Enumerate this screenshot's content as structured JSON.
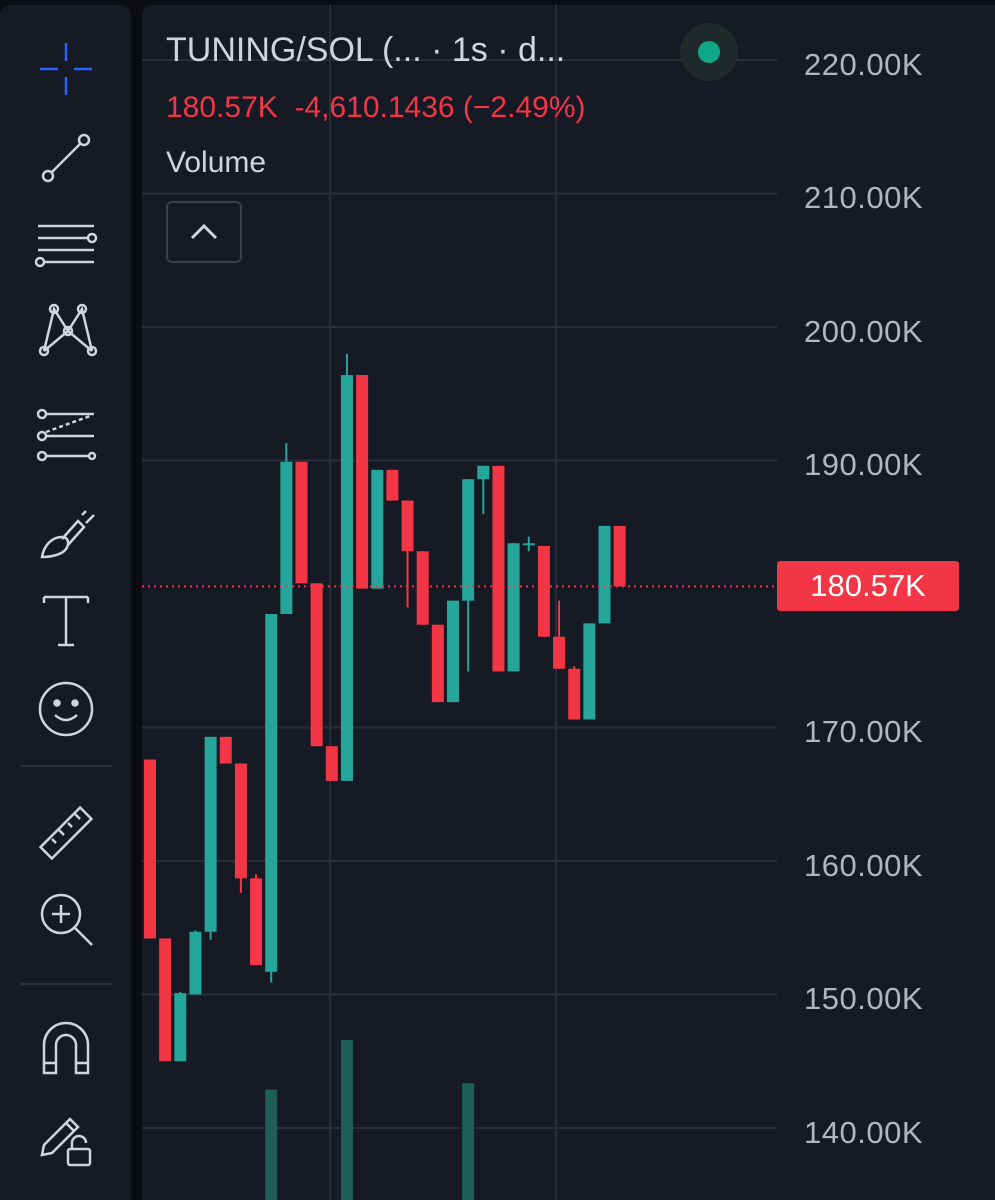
{
  "legend": {
    "title": "TUNING/SOL (...   · 1s · d...",
    "price": "180.57K",
    "change": "-4,610.1436 (−2.49%)",
    "volume_label": "Volume"
  },
  "price_axis": {
    "labels": [
      "220.00K",
      "210.00K",
      "200.00K",
      "190.00K",
      "180.57K",
      "170.00K",
      "160.00K",
      "150.00K",
      "140.00K"
    ],
    "ticks": [
      220,
      210,
      200,
      190,
      170,
      160,
      150,
      140
    ],
    "last_price_label": "180.57K",
    "last_price": 180.57
  },
  "toolbar": {
    "tools": [
      "crosshair-icon",
      "trend-line-icon",
      "horizontal-lines-icon",
      "pattern-icon",
      "forecast-icon",
      "brush-icon",
      "text-icon",
      "emoji-icon",
      "ruler-icon",
      "zoom-in-icon",
      "magnet-icon",
      "lock-drawing-icon"
    ]
  },
  "colors": {
    "up": "#26a69a",
    "down": "#f23645",
    "background": "#161a24",
    "grid": "#2a2e39",
    "text": "#d1d4dc"
  },
  "chart_data": {
    "type": "candlestick",
    "symbol": "TUNING/SOL",
    "interval": "1s",
    "ylim": [
      135.5,
      223.3
    ],
    "candles": [
      {
        "o": 167.6,
        "h": 167.6,
        "c": 154.2,
        "l": 154.2
      },
      {
        "o": 154.2,
        "h": 154.2,
        "c": 145.0,
        "l": 145.0
      },
      {
        "o": 145.0,
        "h": 150.2,
        "c": 150.1,
        "l": 145.0
      },
      {
        "o": 150.0,
        "h": 154.8,
        "c": 154.7,
        "l": 150.0
      },
      {
        "o": 154.7,
        "h": 169.3,
        "c": 169.3,
        "l": 154.1
      },
      {
        "o": 169.3,
        "h": 169.3,
        "c": 167.3,
        "l": 167.3
      },
      {
        "o": 167.3,
        "h": 167.3,
        "c": 158.7,
        "l": 157.6
      },
      {
        "o": 158.7,
        "h": 159.0,
        "c": 152.2,
        "l": 152.2
      },
      {
        "o": 151.7,
        "h": 178.5,
        "c": 178.5,
        "l": 150.9
      },
      {
        "o": 178.5,
        "h": 191.3,
        "c": 189.9,
        "l": 178.5
      },
      {
        "o": 189.9,
        "h": 189.9,
        "c": 180.8,
        "l": 180.8
      },
      {
        "o": 180.8,
        "h": 180.8,
        "c": 168.6,
        "l": 168.6
      },
      {
        "o": 168.6,
        "h": 168.6,
        "c": 166.0,
        "l": 166.0
      },
      {
        "o": 166.0,
        "h": 198.0,
        "c": 196.4,
        "l": 166.0
      },
      {
        "o": 196.4,
        "h": 196.4,
        "c": 180.4,
        "l": 180.4
      },
      {
        "o": 180.4,
        "h": 189.3,
        "c": 189.3,
        "l": 180.4
      },
      {
        "o": 189.3,
        "h": 189.3,
        "c": 187.0,
        "l": 187.0
      },
      {
        "o": 187.0,
        "h": 187.0,
        "c": 183.2,
        "l": 179.0
      },
      {
        "o": 183.2,
        "h": 183.2,
        "c": 177.7,
        "l": 177.7
      },
      {
        "o": 177.7,
        "h": 177.7,
        "c": 171.9,
        "l": 171.9
      },
      {
        "o": 171.9,
        "h": 179.5,
        "c": 179.5,
        "l": 171.9
      },
      {
        "o": 179.5,
        "h": 188.6,
        "c": 188.6,
        "l": 174.2
      },
      {
        "o": 188.6,
        "h": 189.6,
        "c": 189.6,
        "l": 186.0
      },
      {
        "o": 189.6,
        "h": 189.6,
        "c": 174.2,
        "l": 174.2
      },
      {
        "o": 174.2,
        "h": 183.8,
        "c": 183.8,
        "l": 174.2
      },
      {
        "o": 183.8,
        "h": 184.3,
        "c": 183.8,
        "l": 183.2
      },
      {
        "o": 183.6,
        "h": 183.6,
        "c": 176.8,
        "l": 176.8
      },
      {
        "o": 176.8,
        "h": 179.5,
        "c": 174.4,
        "l": 174.4
      },
      {
        "o": 174.4,
        "h": 174.6,
        "c": 170.6,
        "l": 170.6
      },
      {
        "o": 170.6,
        "h": 177.8,
        "c": 177.8,
        "l": 170.6
      },
      {
        "o": 177.8,
        "h": 185.1,
        "c": 185.1,
        "l": 177.8
      },
      {
        "o": 185.1,
        "h": 185.1,
        "c": 180.57,
        "l": 180.57
      }
    ],
    "volume": [
      0,
      0,
      0,
      0,
      0,
      0,
      0,
      0,
      0.69,
      0,
      0,
      0,
      0,
      1,
      0,
      0,
      0,
      0,
      0,
      0,
      0,
      0.73,
      0,
      0,
      0,
      0,
      0,
      0,
      0,
      0,
      0,
      0
    ]
  }
}
